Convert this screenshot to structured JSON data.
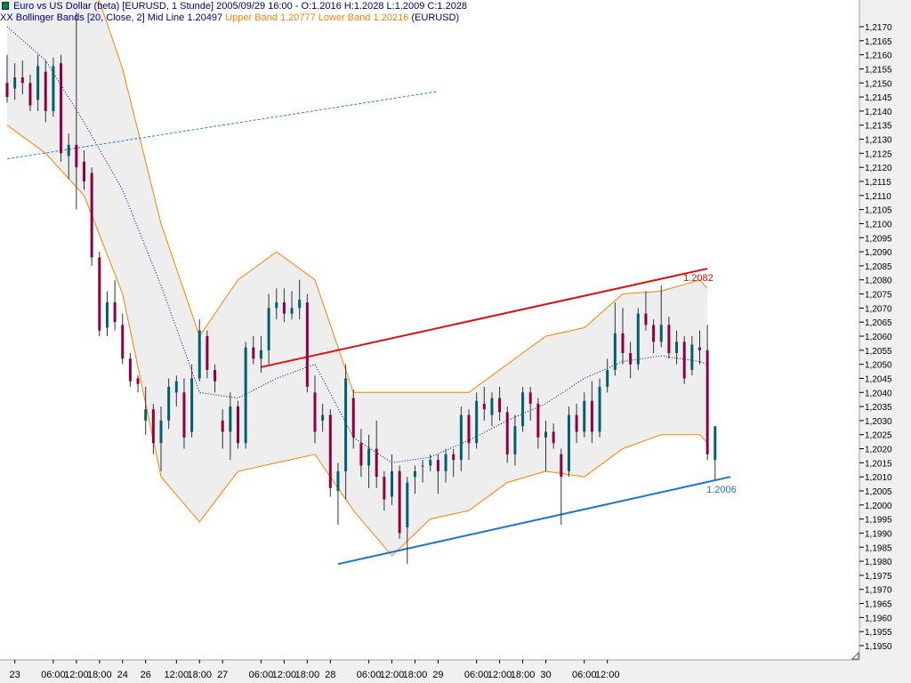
{
  "header": {
    "series_label": "Euro vs US Dollar (beta) [EURUSD, 1 Stunde]",
    "ohlc_text": "2005/09/29 16:00 - O:1.2016 H:1.2028 L:1.2009 C:1.2028",
    "indicator_label": "XX Bollinger Bands [20, Close, 2]",
    "mid_text": "Mid Line 1.20497",
    "upper_text": "Upper Band 1.20777",
    "lower_text": "Lower Band 1.20216",
    "symbol_text": "(EURUSD)"
  },
  "colors": {
    "background": "#ffffff",
    "axis_panel": "#f0f0f0",
    "band_fill": "#eeeeee",
    "bollinger_band": "#ff8000",
    "mid_line": "#000080",
    "candle_up": "#006070",
    "candle_down": "#900040",
    "resistance": "#e01010",
    "support": "#1878d0",
    "trend_dashed": "#2080e0"
  },
  "chart_data": {
    "type": "candlestick",
    "instrument": "EURUSD",
    "timeframe": "1 Stunde",
    "ylim": [
      1.195,
      1.217
    ],
    "y_ticks": [
      "1,2170",
      "1,2165",
      "1,2160",
      "1,2155",
      "1,2150",
      "1,2145",
      "1,2140",
      "1,2135",
      "1,2130",
      "1,2125",
      "1,2120",
      "1,2115",
      "1,2110",
      "1,2105",
      "1,2100",
      "1,2095",
      "1,2090",
      "1,2085",
      "1,2080",
      "1,2075",
      "1,2070",
      "1,2065",
      "1,2060",
      "1,2055",
      "1,2050",
      "1,2045",
      "1,2040",
      "1,2035",
      "1,2030",
      "1,2025",
      "1,2020",
      "1,2015",
      "1,2010",
      "1,2005",
      "1,2000",
      "1,1995",
      "1,1990",
      "1,1985",
      "1,1980",
      "1,1975",
      "1,1970",
      "1,1965",
      "1,1960",
      "1,1955",
      "1,1950"
    ],
    "x_ticks": [
      {
        "label": "23",
        "slot": 1
      },
      {
        "label": "06:00",
        "slot": 6
      },
      {
        "label": "12:00",
        "slot": 9
      },
      {
        "label": "18:00",
        "slot": 12
      },
      {
        "label": "24",
        "slot": 15
      },
      {
        "label": "26",
        "slot": 18
      },
      {
        "label": "12:00",
        "slot": 22
      },
      {
        "label": "18:00",
        "slot": 25
      },
      {
        "label": "27",
        "slot": 28
      },
      {
        "label": "06:00",
        "slot": 33
      },
      {
        "label": "12:00",
        "slot": 36
      },
      {
        "label": "18:00",
        "slot": 39
      },
      {
        "label": "28",
        "slot": 42
      },
      {
        "label": "06:00",
        "slot": 47
      },
      {
        "label": "12:00",
        "slot": 50
      },
      {
        "label": "18:00",
        "slot": 53
      },
      {
        "label": "29",
        "slot": 56
      },
      {
        "label": "06:00",
        "slot": 61
      },
      {
        "label": "12:00",
        "slot": 64
      },
      {
        "label": "18:00",
        "slot": 67
      },
      {
        "label": "30",
        "slot": 70
      },
      {
        "label": "06:00",
        "slot": 75
      },
      {
        "label": "12:00",
        "slot": 78
      }
    ],
    "candles": [
      [
        1.215,
        1.216,
        1.2143,
        1.2145
      ],
      [
        1.2148,
        1.2157,
        1.2144,
        1.2152
      ],
      [
        1.2152,
        1.2158,
        1.2146,
        1.215
      ],
      [
        1.215,
        1.2153,
        1.214,
        1.2142
      ],
      [
        1.2144,
        1.216,
        1.214,
        1.2156
      ],
      [
        1.2154,
        1.2158,
        1.2136,
        1.214
      ],
      [
        1.214,
        1.2159,
        1.2138,
        1.2156
      ],
      [
        1.2157,
        1.216,
        1.2122,
        1.2125
      ],
      [
        1.2124,
        1.2132,
        1.2116,
        1.2128
      ],
      [
        1.2128,
        1.2175,
        1.2105,
        1.212
      ],
      [
        1.2122,
        1.2126,
        1.2112,
        1.2115
      ],
      [
        1.2118,
        1.212,
        1.2085,
        1.2088
      ],
      [
        1.2088,
        1.209,
        1.206,
        1.2062
      ],
      [
        1.2063,
        1.2076,
        1.206,
        1.2072
      ],
      [
        1.2072,
        1.208,
        1.2062,
        1.2065
      ],
      [
        1.2064,
        1.2068,
        1.205,
        1.2052
      ],
      [
        1.2052,
        1.2054,
        1.2042,
        1.2044
      ],
      [
        1.2045,
        1.2046,
        1.204,
        1.2043
      ],
      [
        1.203,
        1.2042,
        1.2025,
        1.2034
      ],
      [
        1.2034,
        1.2036,
        1.2018,
        1.2022
      ],
      [
        1.2022,
        1.2035,
        1.2012,
        1.203
      ],
      [
        1.203,
        1.2045,
        1.2027,
        1.2042
      ],
      [
        1.204,
        1.2046,
        1.2035,
        1.2044
      ],
      [
        1.204,
        1.2045,
        1.202,
        1.2024
      ],
      [
        1.2026,
        1.205,
        1.2024,
        1.2045
      ],
      [
        1.2045,
        1.2066,
        1.2044,
        1.2062
      ],
      [
        1.206,
        1.2062,
        1.2045,
        1.2048
      ],
      [
        1.2048,
        1.205,
        1.204,
        1.2044
      ],
      [
        1.203,
        1.2034,
        1.202,
        1.2026
      ],
      [
        1.2026,
        1.204,
        1.2016,
        1.2035
      ],
      [
        1.2035,
        1.2037,
        1.202,
        1.2022
      ],
      [
        1.2022,
        1.2058,
        1.202,
        1.2056
      ],
      [
        1.2056,
        1.206,
        1.205,
        1.2052
      ],
      [
        1.2052,
        1.206,
        1.2047,
        1.2055
      ],
      [
        1.2055,
        1.2075,
        1.205,
        1.207
      ],
      [
        1.207,
        1.2077,
        1.2066,
        1.2072
      ],
      [
        1.2072,
        1.2077,
        1.2065,
        1.2068
      ],
      [
        1.2068,
        1.2076,
        1.2066,
        1.207
      ],
      [
        1.207,
        1.208,
        1.2066,
        1.2073
      ],
      [
        1.2072,
        1.2075,
        1.204,
        1.2042
      ],
      [
        1.204,
        1.2046,
        1.2022,
        1.2026
      ],
      [
        1.203,
        1.2036,
        1.2026,
        1.2032
      ],
      [
        1.2032,
        1.2034,
        1.2003,
        1.2006
      ],
      [
        1.2005,
        1.2015,
        1.1993,
        1.2012
      ],
      [
        1.2012,
        1.205,
        1.2002,
        1.2045
      ],
      [
        1.2038,
        1.2041,
        1.202,
        1.2024
      ],
      [
        1.2022,
        1.2027,
        1.201,
        1.2014
      ],
      [
        1.2014,
        1.2025,
        1.2006,
        1.202
      ],
      [
        1.202,
        1.203,
        1.2006,
        1.201
      ],
      [
        1.201,
        1.2012,
        1.1998,
        1.2002
      ],
      [
        1.2003,
        1.2018,
        1.2,
        1.2012
      ],
      [
        1.2012,
        1.2014,
        1.1988,
        1.199
      ],
      [
        1.1992,
        1.201,
        1.1979,
        1.2008
      ],
      [
        1.201,
        1.2014,
        1.2004,
        1.2012
      ],
      [
        1.2014,
        1.2016,
        1.2008,
        1.2014
      ],
      [
        1.2014,
        1.2018,
        1.2012,
        1.2016
      ],
      [
        1.2016,
        1.2018,
        1.2004,
        1.2012
      ],
      [
        1.2012,
        1.202,
        1.2008,
        1.2018
      ],
      [
        1.2018,
        1.202,
        1.201,
        1.2016
      ],
      [
        1.2016,
        1.2035,
        1.2012,
        1.2032
      ],
      [
        1.2032,
        1.2034,
        1.2016,
        1.2022
      ],
      [
        1.2022,
        1.204,
        1.202,
        1.2037
      ],
      [
        1.2036,
        1.2042,
        1.203,
        1.2034
      ],
      [
        1.2032,
        1.204,
        1.2028,
        1.2038
      ],
      [
        1.2038,
        1.2042,
        1.203,
        1.2033
      ],
      [
        1.2033,
        1.2035,
        1.2015,
        1.2018
      ],
      [
        1.2018,
        1.2032,
        1.2014,
        1.2028
      ],
      [
        1.2028,
        1.2042,
        1.2026,
        1.204
      ],
      [
        1.204,
        1.2042,
        1.203,
        1.2036
      ],
      [
        1.2036,
        1.2038,
        1.202,
        1.2024
      ],
      [
        1.2024,
        1.203,
        1.2012,
        1.2026
      ],
      [
        1.2026,
        1.2029,
        1.202,
        1.2022
      ],
      [
        1.2018,
        1.202,
        1.1993,
        1.201
      ],
      [
        1.2012,
        1.2035,
        1.201,
        1.2032
      ],
      [
        1.2032,
        1.2036,
        1.2022,
        1.2026
      ],
      [
        1.2026,
        1.204,
        1.2024,
        1.2037
      ],
      [
        1.2037,
        1.2044,
        1.2022,
        1.2026
      ],
      [
        1.2026,
        1.2045,
        1.2024,
        1.2042
      ],
      [
        1.2042,
        1.2052,
        1.204,
        1.2048
      ],
      [
        1.2048,
        1.2072,
        1.2046,
        1.2061
      ],
      [
        1.2061,
        1.207,
        1.205,
        1.2054
      ],
      [
        1.2054,
        1.2058,
        1.2045,
        1.205
      ],
      [
        1.205,
        1.207,
        1.2048,
        1.2068
      ],
      [
        1.2068,
        1.2076,
        1.2062,
        1.2064
      ],
      [
        1.2064,
        1.2066,
        1.2054,
        1.2058
      ],
      [
        1.2058,
        1.2078,
        1.2056,
        1.2064
      ],
      [
        1.2064,
        1.2067,
        1.2052,
        1.2054
      ],
      [
        1.2054,
        1.2062,
        1.205,
        1.2058
      ],
      [
        1.2058,
        1.206,
        1.2043,
        1.2045
      ],
      [
        1.2048,
        1.206,
        1.2046,
        1.2057
      ],
      [
        1.2056,
        1.2062,
        1.205,
        1.2055
      ],
      [
        1.2055,
        1.2064,
        1.2016,
        1.2018
      ],
      [
        1.2016,
        1.2028,
        1.2009,
        1.2028
      ]
    ],
    "bollinger": {
      "period": 20,
      "source": "Close",
      "deviations": 2,
      "x_slot": [
        0,
        5,
        10,
        15,
        20,
        25,
        30,
        35,
        40,
        45,
        50,
        55,
        60,
        65,
        70,
        75,
        80,
        85,
        90,
        91
      ],
      "upper": [
        1.221,
        1.2212,
        1.2195,
        1.2155,
        1.21,
        1.206,
        1.208,
        1.209,
        1.208,
        1.204,
        1.204,
        1.204,
        1.204,
        1.205,
        1.206,
        1.2063,
        1.2075,
        1.2076,
        1.208,
        1.2077
      ],
      "mid": [
        1.217,
        1.2158,
        1.2136,
        1.2112,
        1.2078,
        1.204,
        1.2038,
        1.2045,
        1.205,
        1.2024,
        1.2015,
        1.2017,
        1.2023,
        1.203,
        1.2036,
        1.2045,
        1.2051,
        1.2053,
        1.2051,
        1.205
      ],
      "lower": [
        1.2135,
        1.2125,
        1.211,
        1.2075,
        1.201,
        1.1994,
        1.2012,
        1.2015,
        1.2018,
        1.1998,
        1.1982,
        1.1995,
        1.1998,
        1.2008,
        1.2012,
        1.201,
        1.202,
        1.2025,
        1.2025,
        1.2022
      ]
    },
    "annotations": [
      {
        "name": "resistance-line",
        "x": [
          33,
          91
        ],
        "y": [
          1.2049,
          1.2084
        ],
        "label": "1.2082",
        "color": "#e01010"
      },
      {
        "name": "support-line",
        "x": [
          43,
          94
        ],
        "y": [
          1.1979,
          1.201
        ],
        "label": "1.2006",
        "color": "#1878d0"
      },
      {
        "name": "dashed-trend-line",
        "x": [
          0,
          56
        ],
        "y": [
          1.2123,
          1.2147
        ],
        "label": "",
        "color": "#2080e0"
      }
    ]
  }
}
